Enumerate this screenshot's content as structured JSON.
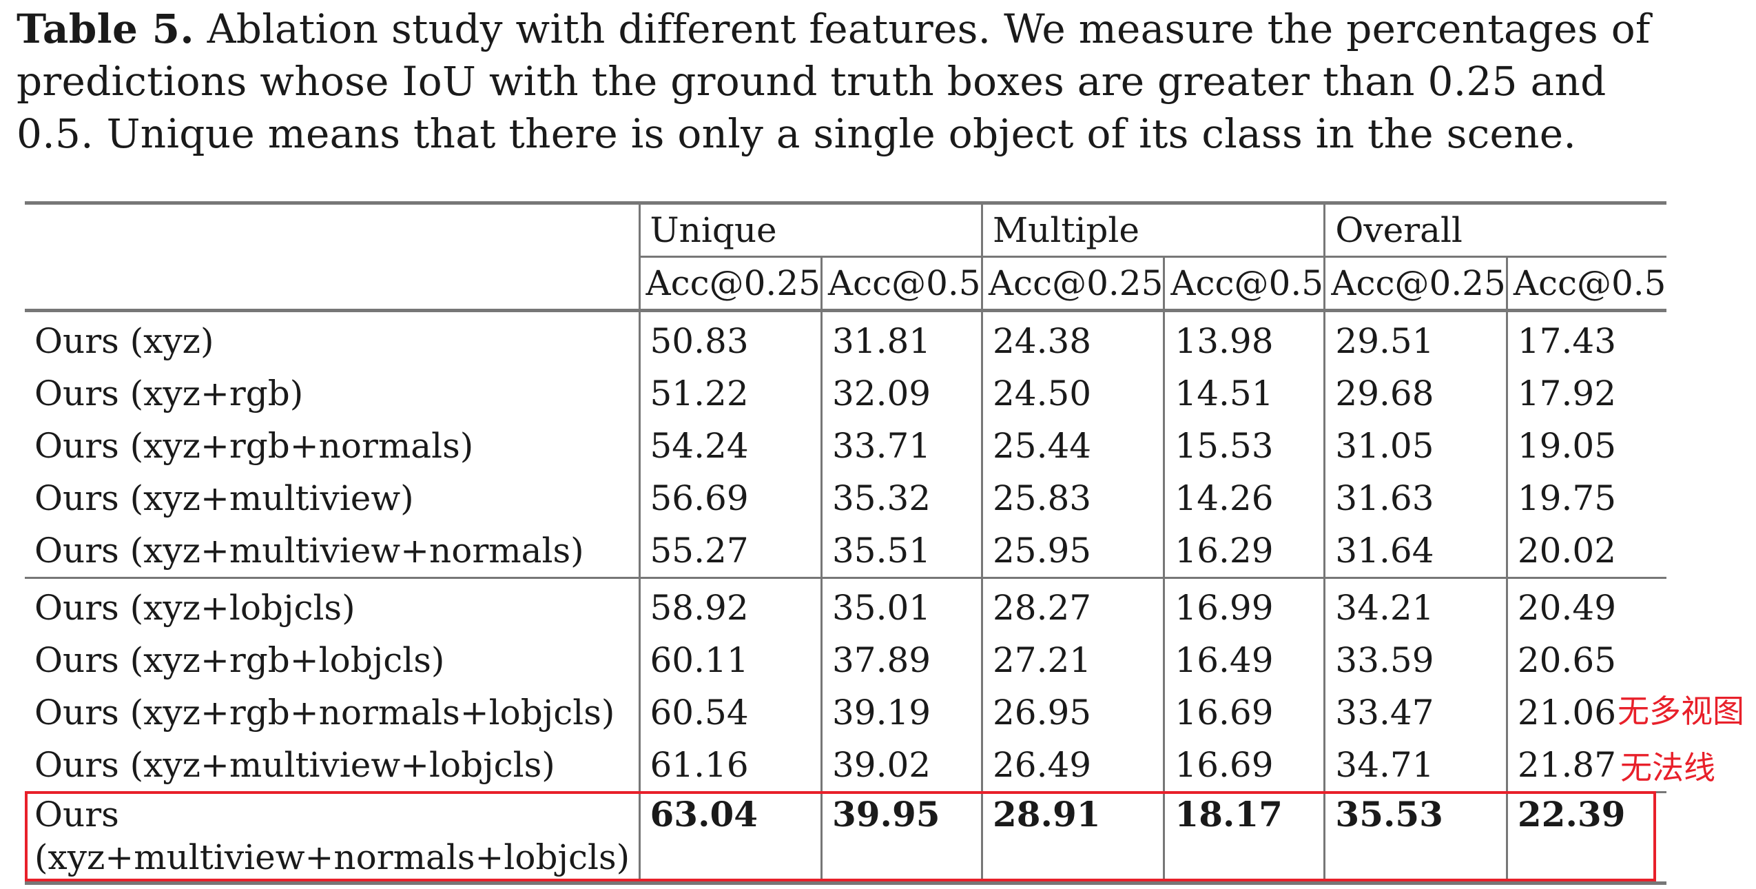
{
  "caption": {
    "label": "Table 5.",
    "text": "Ablation study with different features. We measure the percentages of predictions whose IoU with the ground truth boxes are greater than 0.25 and 0.5. Unique means that there is only a single object of its class in the scene."
  },
  "table": {
    "groups": [
      "Unique",
      "Multiple",
      "Overall"
    ],
    "metrics": [
      "Acc@0.25",
      "Acc@0.5",
      "Acc@0.25",
      "Acc@0.5",
      "Acc@0.25",
      "Acc@0.5"
    ],
    "rows": [
      {
        "method": "Ours (xyz)",
        "values": [
          "50.83",
          "31.81",
          "24.38",
          "13.98",
          "29.51",
          "17.43"
        ]
      },
      {
        "method": "Ours (xyz+rgb)",
        "values": [
          "51.22",
          "32.09",
          "24.50",
          "14.51",
          "29.68",
          "17.92"
        ]
      },
      {
        "method": "Ours (xyz+rgb+normals)",
        "values": [
          "54.24",
          "33.71",
          "25.44",
          "15.53",
          "31.05",
          "19.05"
        ]
      },
      {
        "method": "Ours (xyz+multiview)",
        "values": [
          "56.69",
          "35.32",
          "25.83",
          "14.26",
          "31.63",
          "19.75"
        ]
      },
      {
        "method": "Ours (xyz+multiview+normals)",
        "values": [
          "55.27",
          "35.51",
          "25.95",
          "16.29",
          "31.64",
          "20.02"
        ]
      },
      {
        "method": "Ours (xyz+lobjcls)",
        "values": [
          "58.92",
          "35.01",
          "28.27",
          "16.99",
          "34.21",
          "20.49"
        ]
      },
      {
        "method": "Ours (xyz+rgb+lobjcls)",
        "values": [
          "60.11",
          "37.89",
          "27.21",
          "16.49",
          "33.59",
          "20.65"
        ]
      },
      {
        "method": "Ours (xyz+rgb+normals+lobjcls)",
        "values": [
          "60.54",
          "39.19",
          "26.95",
          "16.69",
          "33.47",
          "21.06"
        ]
      },
      {
        "method": "Ours (xyz+multiview+lobjcls)",
        "values": [
          "61.16",
          "39.02",
          "26.49",
          "16.69",
          "34.71",
          "21.87"
        ]
      }
    ],
    "best_row": {
      "method_line1": "Ours",
      "method_line2": "(xyz+multiview+normals+lobjcls)",
      "values": [
        "63.04",
        "39.95",
        "28.91",
        "18.17",
        "35.53",
        "22.39"
      ]
    }
  },
  "annotations": {
    "note_1": "无多视图",
    "note_2": "无法线",
    "color": "#e8202a"
  }
}
